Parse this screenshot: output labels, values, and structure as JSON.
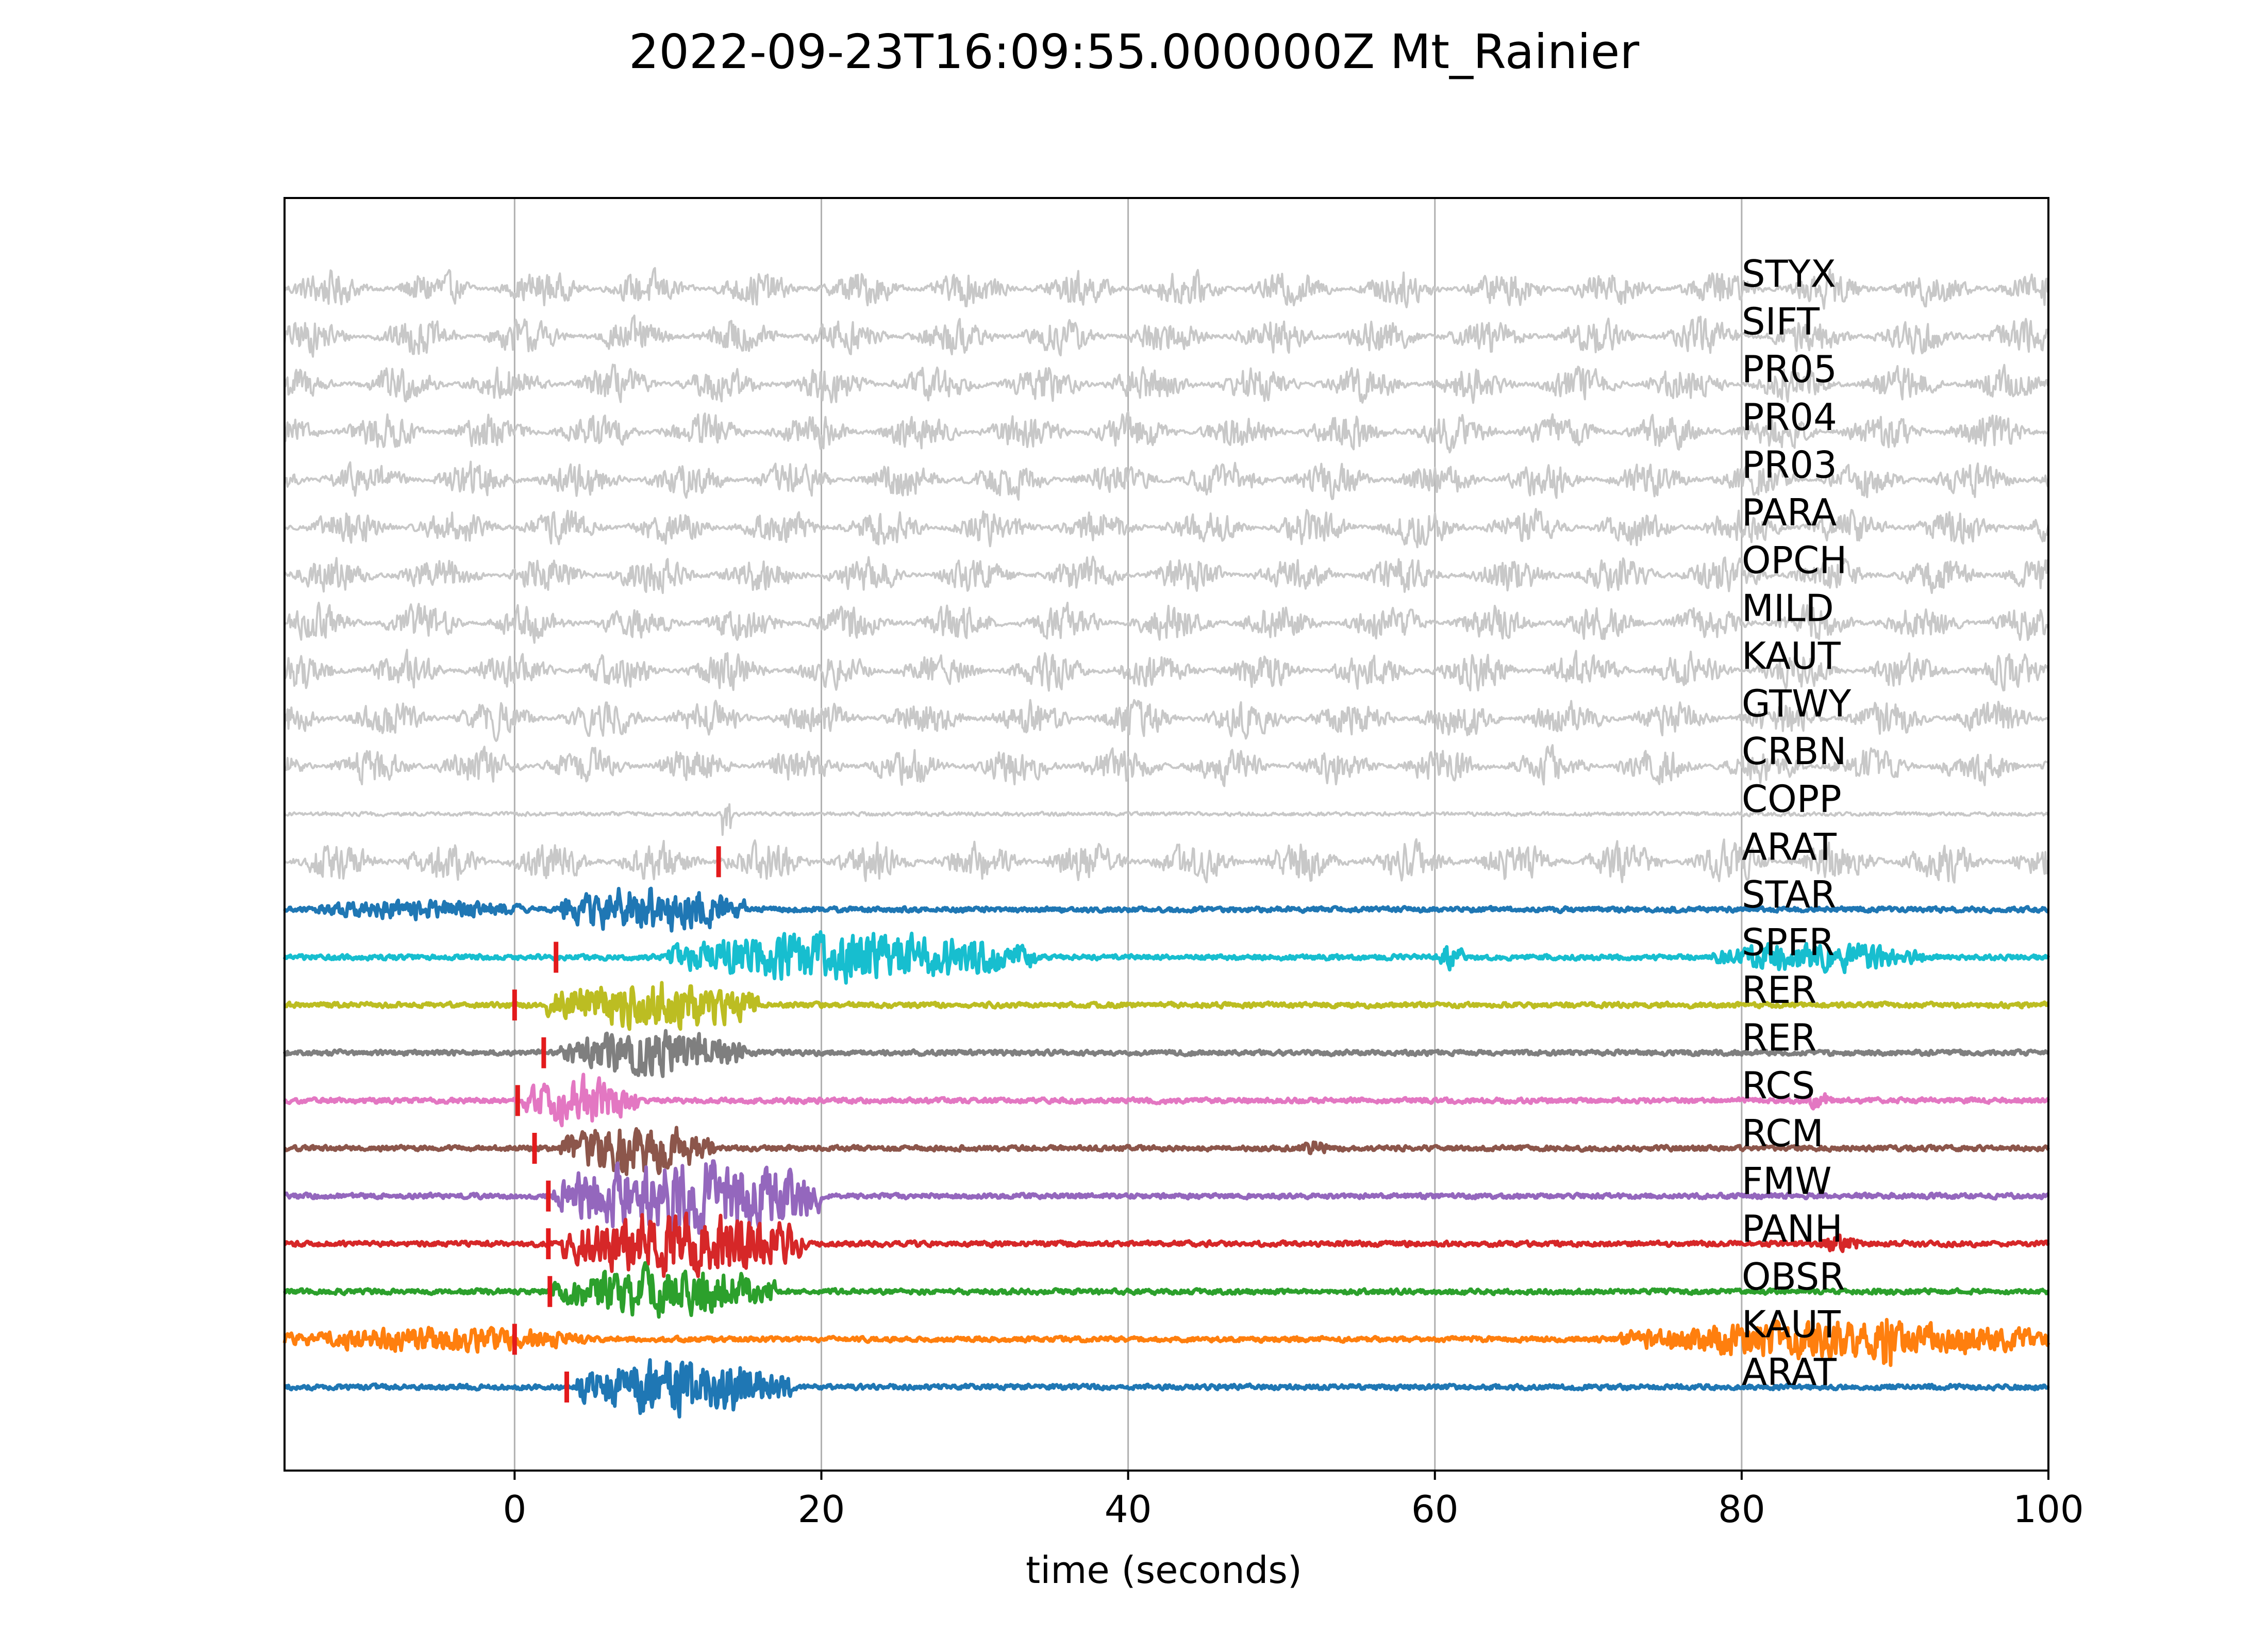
{
  "chart_data": {
    "type": "line",
    "title": "2022-09-23T16:09:55.000000Z Mt_Rainier",
    "xlabel": "time (seconds)",
    "ylabel": "",
    "xlim": [
      -15,
      100
    ],
    "xticks": [
      0,
      20,
      40,
      60,
      80,
      100
    ],
    "grid": "vertical",
    "series": [
      {
        "name": "STYX",
        "color": "#c8c8c8",
        "kind": "noise",
        "amp": 0.45,
        "pick": null
      },
      {
        "name": "SIFT",
        "color": "#c8c8c8",
        "kind": "noise",
        "amp": 0.45,
        "pick": null
      },
      {
        "name": "PR05",
        "color": "#c8c8c8",
        "kind": "noise",
        "amp": 0.45,
        "pick": null
      },
      {
        "name": "PR04",
        "color": "#c8c8c8",
        "kind": "noise",
        "amp": 0.45,
        "pick": null
      },
      {
        "name": "PR03",
        "color": "#c8c8c8",
        "kind": "noise",
        "amp": 0.45,
        "pick": null
      },
      {
        "name": "PARA",
        "color": "#c8c8c8",
        "kind": "noise",
        "amp": 0.45,
        "pick": null
      },
      {
        "name": "OPCH",
        "color": "#c8c8c8",
        "kind": "noise",
        "amp": 0.45,
        "pick": null
      },
      {
        "name": "MILD",
        "color": "#c8c8c8",
        "kind": "noise",
        "amp": 0.45,
        "pick": null
      },
      {
        "name": "KAUT",
        "color": "#c8c8c8",
        "kind": "noise",
        "amp": 0.45,
        "pick": null
      },
      {
        "name": "GTWY",
        "color": "#c8c8c8",
        "kind": "noise",
        "amp": 0.45,
        "pick": null
      },
      {
        "name": "CRBN",
        "color": "#c8c8c8",
        "kind": "noise",
        "amp": 0.45,
        "pick": null
      },
      {
        "name": "COPP",
        "color": "#c8c8c8",
        "kind": "flat",
        "amp": 0.05,
        "pick": null,
        "spike": 13.8
      },
      {
        "name": "ARAT",
        "color": "#c8c8c8",
        "kind": "noise",
        "amp": 0.5,
        "pick": 13.3
      },
      {
        "name": "STAR",
        "color": "#1f77b4",
        "kind": "event",
        "amp": 0.5,
        "pick": null,
        "bursts": [
          [
            -13,
            0.5,
            0.25
          ],
          [
            3,
            15,
            0.55
          ]
        ]
      },
      {
        "name": "SPFR",
        "color": "#17becf",
        "kind": "event",
        "amp": 0.6,
        "pick": 2.7,
        "bursts": [
          [
            10,
            34,
            0.6
          ],
          [
            60,
            62,
            0.3
          ],
          [
            78,
            92,
            0.35
          ]
        ]
      },
      {
        "name": "RER",
        "color": "#bcbd22",
        "kind": "event",
        "amp": 0.7,
        "pick": 0.0,
        "bursts": [
          [
            2,
            16,
            0.6
          ]
        ]
      },
      {
        "name": "RER",
        "color": "#7f7f7f",
        "kind": "event",
        "amp": 0.7,
        "pick": 1.9,
        "bursts": [
          [
            3,
            15,
            0.55
          ]
        ]
      },
      {
        "name": "RCS",
        "color": "#e377c2",
        "kind": "event",
        "amp": 0.6,
        "pick": 0.2,
        "bursts": [
          [
            0.5,
            8,
            0.6
          ],
          [
            84,
            86,
            0.2
          ]
        ]
      },
      {
        "name": "RCM",
        "color": "#8c564b",
        "kind": "event",
        "amp": 0.7,
        "pick": 1.3,
        "bursts": [
          [
            3,
            13,
            0.6
          ],
          [
            51,
            53,
            0.2
          ]
        ]
      },
      {
        "name": "FMW",
        "color": "#9467bd",
        "kind": "event",
        "amp": 0.9,
        "pick": 2.2,
        "bursts": [
          [
            2.5,
            20,
            0.9
          ]
        ]
      },
      {
        "name": "PANH",
        "color": "#d62728",
        "kind": "event",
        "amp": 0.8,
        "pick": 2.2,
        "bursts": [
          [
            3,
            19,
            0.8
          ],
          [
            85,
            88,
            0.2
          ]
        ]
      },
      {
        "name": "OBSR",
        "color": "#2ca02c",
        "kind": "event",
        "amp": 0.6,
        "pick": 2.3,
        "bursts": [
          [
            2.5,
            17,
            0.6
          ]
        ]
      },
      {
        "name": "KAUT",
        "color": "#ff7f0e",
        "kind": "event",
        "amp": 0.7,
        "pick": 0.0,
        "bursts": [
          [
            -15,
            5,
            0.3
          ],
          [
            72,
            100,
            0.45
          ],
          [
            89,
            90,
            0.9
          ]
        ]
      },
      {
        "name": "ARAT",
        "color": "#1f77b4",
        "kind": "event",
        "amp": 0.7,
        "pick": 3.4,
        "bursts": [
          [
            4,
            18,
            0.7
          ]
        ]
      }
    ]
  }
}
